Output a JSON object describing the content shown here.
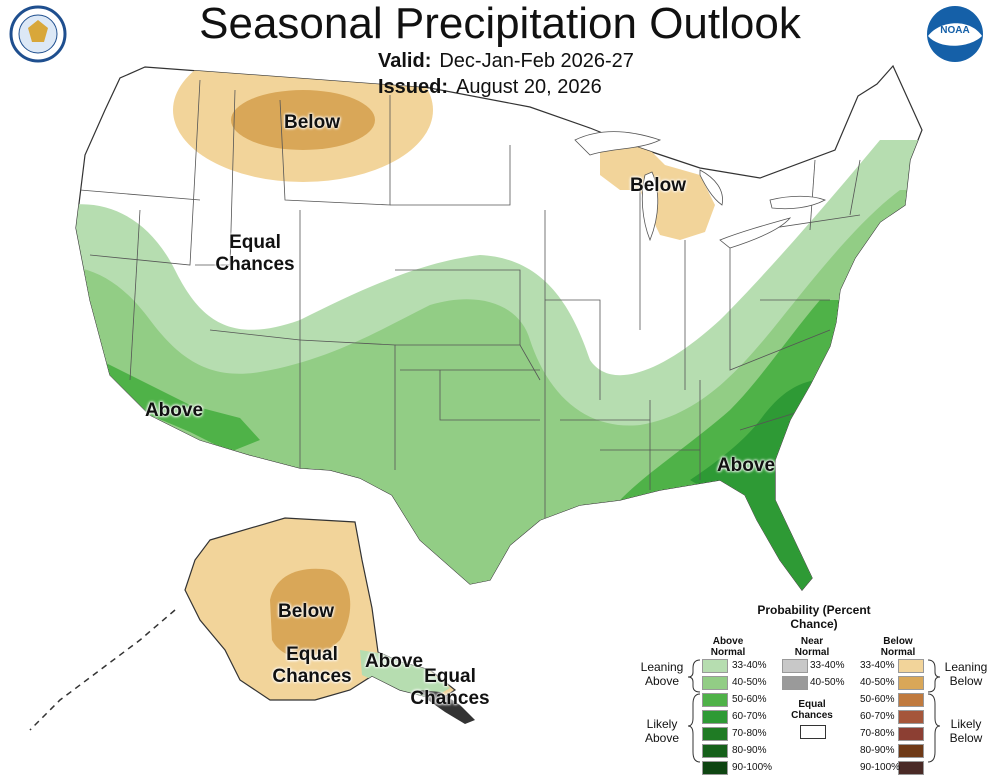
{
  "header": {
    "title": "Seasonal Precipitation Outlook",
    "valid_label": "Valid:",
    "valid_value": "Dec-Jan-Feb 2026-27",
    "issued_label": "Issued:",
    "issued_value": "August 20, 2026",
    "noaa_logo_text": "NOAA"
  },
  "map_labels": {
    "below_northwest": "Below",
    "below_great_lakes": "Below",
    "equal_chances_west": "Equal Chances",
    "above_southwest": "Above",
    "above_southeast": "Above",
    "below_alaska": "Below",
    "equal_chances_alaska": "Equal Chances",
    "above_alaska_south": "Above",
    "equal_chances_aleutians": "Equal Chances"
  },
  "legend": {
    "title": "Probability (Percent Chance)",
    "above_header": "Above Normal",
    "near_header": "Near Normal",
    "below_header": "Below Normal",
    "equal_chances": "Equal Chances",
    "leaning_above": "Leaning Above",
    "likely_above": "Likely Above",
    "leaning_below": "Leaning Below",
    "likely_below": "Likely Below",
    "above": [
      {
        "label": "33-40%",
        "color": "#b6ddb0"
      },
      {
        "label": "40-50%",
        "color": "#92cd85"
      },
      {
        "label": "50-60%",
        "color": "#4fb248"
      },
      {
        "label": "60-70%",
        "color": "#2e9a35"
      },
      {
        "label": "70-80%",
        "color": "#1f7b24"
      },
      {
        "label": "80-90%",
        "color": "#15601a"
      },
      {
        "label": "90-100%",
        "color": "#0e4512"
      }
    ],
    "near": [
      {
        "label": "33-40%",
        "color": "#c8c8c8"
      },
      {
        "label": "40-50%",
        "color": "#9a9a9a"
      }
    ],
    "below": [
      {
        "label": "33-40%",
        "color": "#f2d49a"
      },
      {
        "label": "40-50%",
        "color": "#d9a758"
      },
      {
        "label": "50-60%",
        "color": "#c07a3e"
      },
      {
        "label": "60-70%",
        "color": "#a5563a"
      },
      {
        "label": "70-80%",
        "color": "#8c3f33"
      },
      {
        "label": "80-90%",
        "color": "#6f3a17"
      },
      {
        "label": "90-100%",
        "color": "#4a2a26"
      }
    ]
  }
}
